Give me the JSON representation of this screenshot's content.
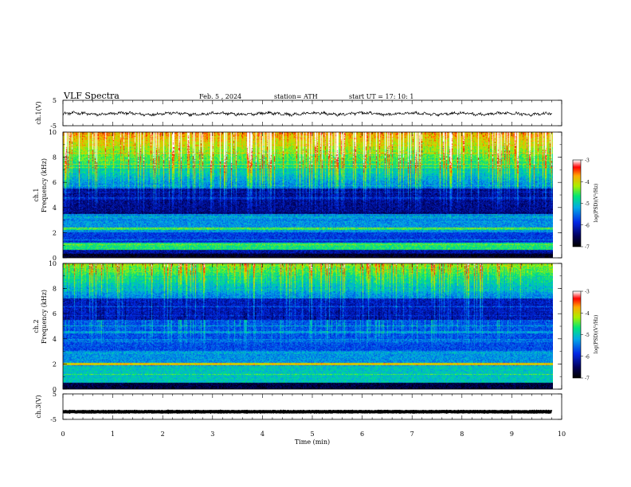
{
  "header": {
    "title": "VLF  Spectra",
    "date": "Feb. 5  , 2024",
    "station": "station= ATH",
    "start_ut": "start  UT  =    17: 10: 1"
  },
  "colors": {
    "spectrogram_low": "#000050",
    "spectrogram_mid": "#00c8b4",
    "spectrogram_high": "#ff0000",
    "colorbar_top": "#ffffff",
    "trace": "#000000"
  },
  "chart_data": [
    {
      "type": "line",
      "id": "ch1-waveform",
      "ylabel": "ch.1(V)",
      "xlim": [
        0,
        10
      ],
      "ylim": [
        -5,
        5
      ],
      "yticks": [
        -5,
        5
      ],
      "x_end": 9.8,
      "baseline": -0.3,
      "amplitude": 0.6
    },
    {
      "type": "heatmap",
      "id": "ch1-spectrogram",
      "ylabel_top": "ch.1",
      "ylabel": "Frequency  (kHz)",
      "xlim": [
        0,
        10
      ],
      "ylim": [
        0,
        10
      ],
      "yticks": [
        0,
        2,
        4,
        6,
        8,
        10
      ],
      "x_end": 9.8,
      "colorbar": {
        "label": "log(PSD)(V²/Hz)",
        "range": [
          -7,
          -3
        ],
        "ticks": [
          -3,
          -4,
          -5,
          -6,
          -7
        ]
      }
    },
    {
      "type": "heatmap",
      "id": "ch2-spectrogram",
      "ylabel_top": "ch.2",
      "ylabel": "Frequency  (kHz)",
      "xlim": [
        0,
        10
      ],
      "ylim": [
        0,
        10
      ],
      "yticks": [
        0,
        2,
        4,
        6,
        8,
        10
      ],
      "x_end": 9.8,
      "colorbar": {
        "label": "log(PSD)(V²/Hz)",
        "range": [
          -7,
          -3
        ],
        "ticks": [
          -3,
          -4,
          -5,
          -6,
          -7
        ]
      }
    },
    {
      "type": "line",
      "id": "ch3-waveform",
      "ylabel": "ch.3(V)",
      "xlim": [
        0,
        10
      ],
      "ylim": [
        -5,
        5
      ],
      "yticks": [
        -5,
        5
      ],
      "x_end": 9.8,
      "baseline": -2.0,
      "amplitude": 0.2
    }
  ],
  "x_axis": {
    "label": "Time  (min)",
    "ticks": [
      0,
      1,
      2,
      3,
      4,
      5,
      6,
      7,
      8,
      9,
      10
    ]
  }
}
